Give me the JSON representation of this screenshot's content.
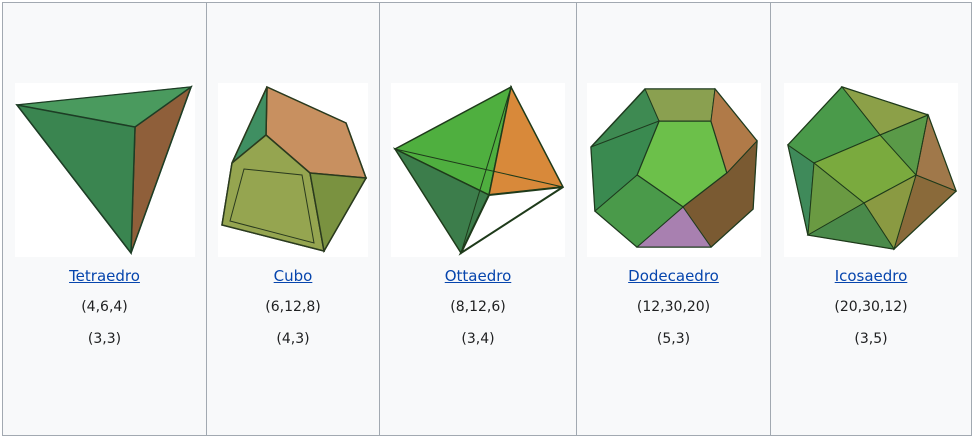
{
  "solids": [
    {
      "name": "Tetraedro",
      "counts": "(4,6,4)",
      "symbol": "(3,3)",
      "icon": "tetrahedron-image"
    },
    {
      "name": "Cubo",
      "counts": "(6,12,8)",
      "symbol": "(4,3)",
      "icon": "cube-image"
    },
    {
      "name": "Ottaedro",
      "counts": "(8,12,6)",
      "symbol": "(3,4)",
      "icon": "octahedron-image"
    },
    {
      "name": "Dodecaedro",
      "counts": "(12,30,20)",
      "symbol": "(5,3)",
      "icon": "dodecahedron-image"
    },
    {
      "name": "Icosaedro",
      "counts": "(20,30,12)",
      "symbol": "(3,5)",
      "icon": "icosahedron-image"
    }
  ],
  "colors": {
    "link": "#0645ad",
    "border": "#a2a9b1",
    "background": "#f8f9fa",
    "green_face": "#3f8f55",
    "dark_green": "#2f6e45",
    "orange_face": "#d88a3a",
    "brown_face": "#8f6a3a",
    "olive_face": "#8fa04a"
  }
}
